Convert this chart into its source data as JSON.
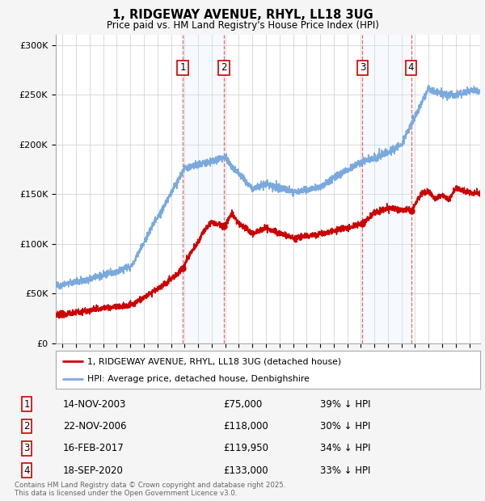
{
  "title": "1, RIDGEWAY AVENUE, RHYL, LL18 3UG",
  "subtitle": "Price paid vs. HM Land Registry's House Price Index (HPI)",
  "red_label": "1, RIDGEWAY AVENUE, RHYL, LL18 3UG (detached house)",
  "blue_label": "HPI: Average price, detached house, Denbighshire",
  "footer": "Contains HM Land Registry data © Crown copyright and database right 2025.\nThis data is licensed under the Open Government Licence v3.0.",
  "transactions": [
    {
      "num": 1,
      "date": "14-NOV-2003",
      "price": "£75,000",
      "pct": "39% ↓ HPI",
      "year": 2003.87,
      "value": 75000
    },
    {
      "num": 2,
      "date": "22-NOV-2006",
      "price": "£118,000",
      "pct": "30% ↓ HPI",
      "year": 2006.89,
      "value": 118000
    },
    {
      "num": 3,
      "date": "16-FEB-2017",
      "price": "£119,950",
      "pct": "34% ↓ HPI",
      "year": 2017.12,
      "value": 119950
    },
    {
      "num": 4,
      "date": "18-SEP-2020",
      "price": "£133,000",
      "pct": "33% ↓ HPI",
      "year": 2020.71,
      "value": 133000
    }
  ],
  "ylim": [
    0,
    310000
  ],
  "yticks": [
    0,
    50000,
    100000,
    150000,
    200000,
    250000,
    300000
  ],
  "ytick_labels": [
    "£0",
    "£50K",
    "£100K",
    "£150K",
    "£200K",
    "£250K",
    "£300K"
  ],
  "xlim_start": 1994.5,
  "xlim_end": 2025.8,
  "background_color": "#f5f5f5",
  "plot_bg_color": "#ffffff",
  "red_color": "#cc0000",
  "blue_color": "#7aaadd",
  "shade_color": "#ddeeff",
  "vline_color": "#dd4444",
  "grid_color": "#cccccc",
  "box_color": "#cc0000",
  "title_fontsize": 11,
  "subtitle_fontsize": 9
}
